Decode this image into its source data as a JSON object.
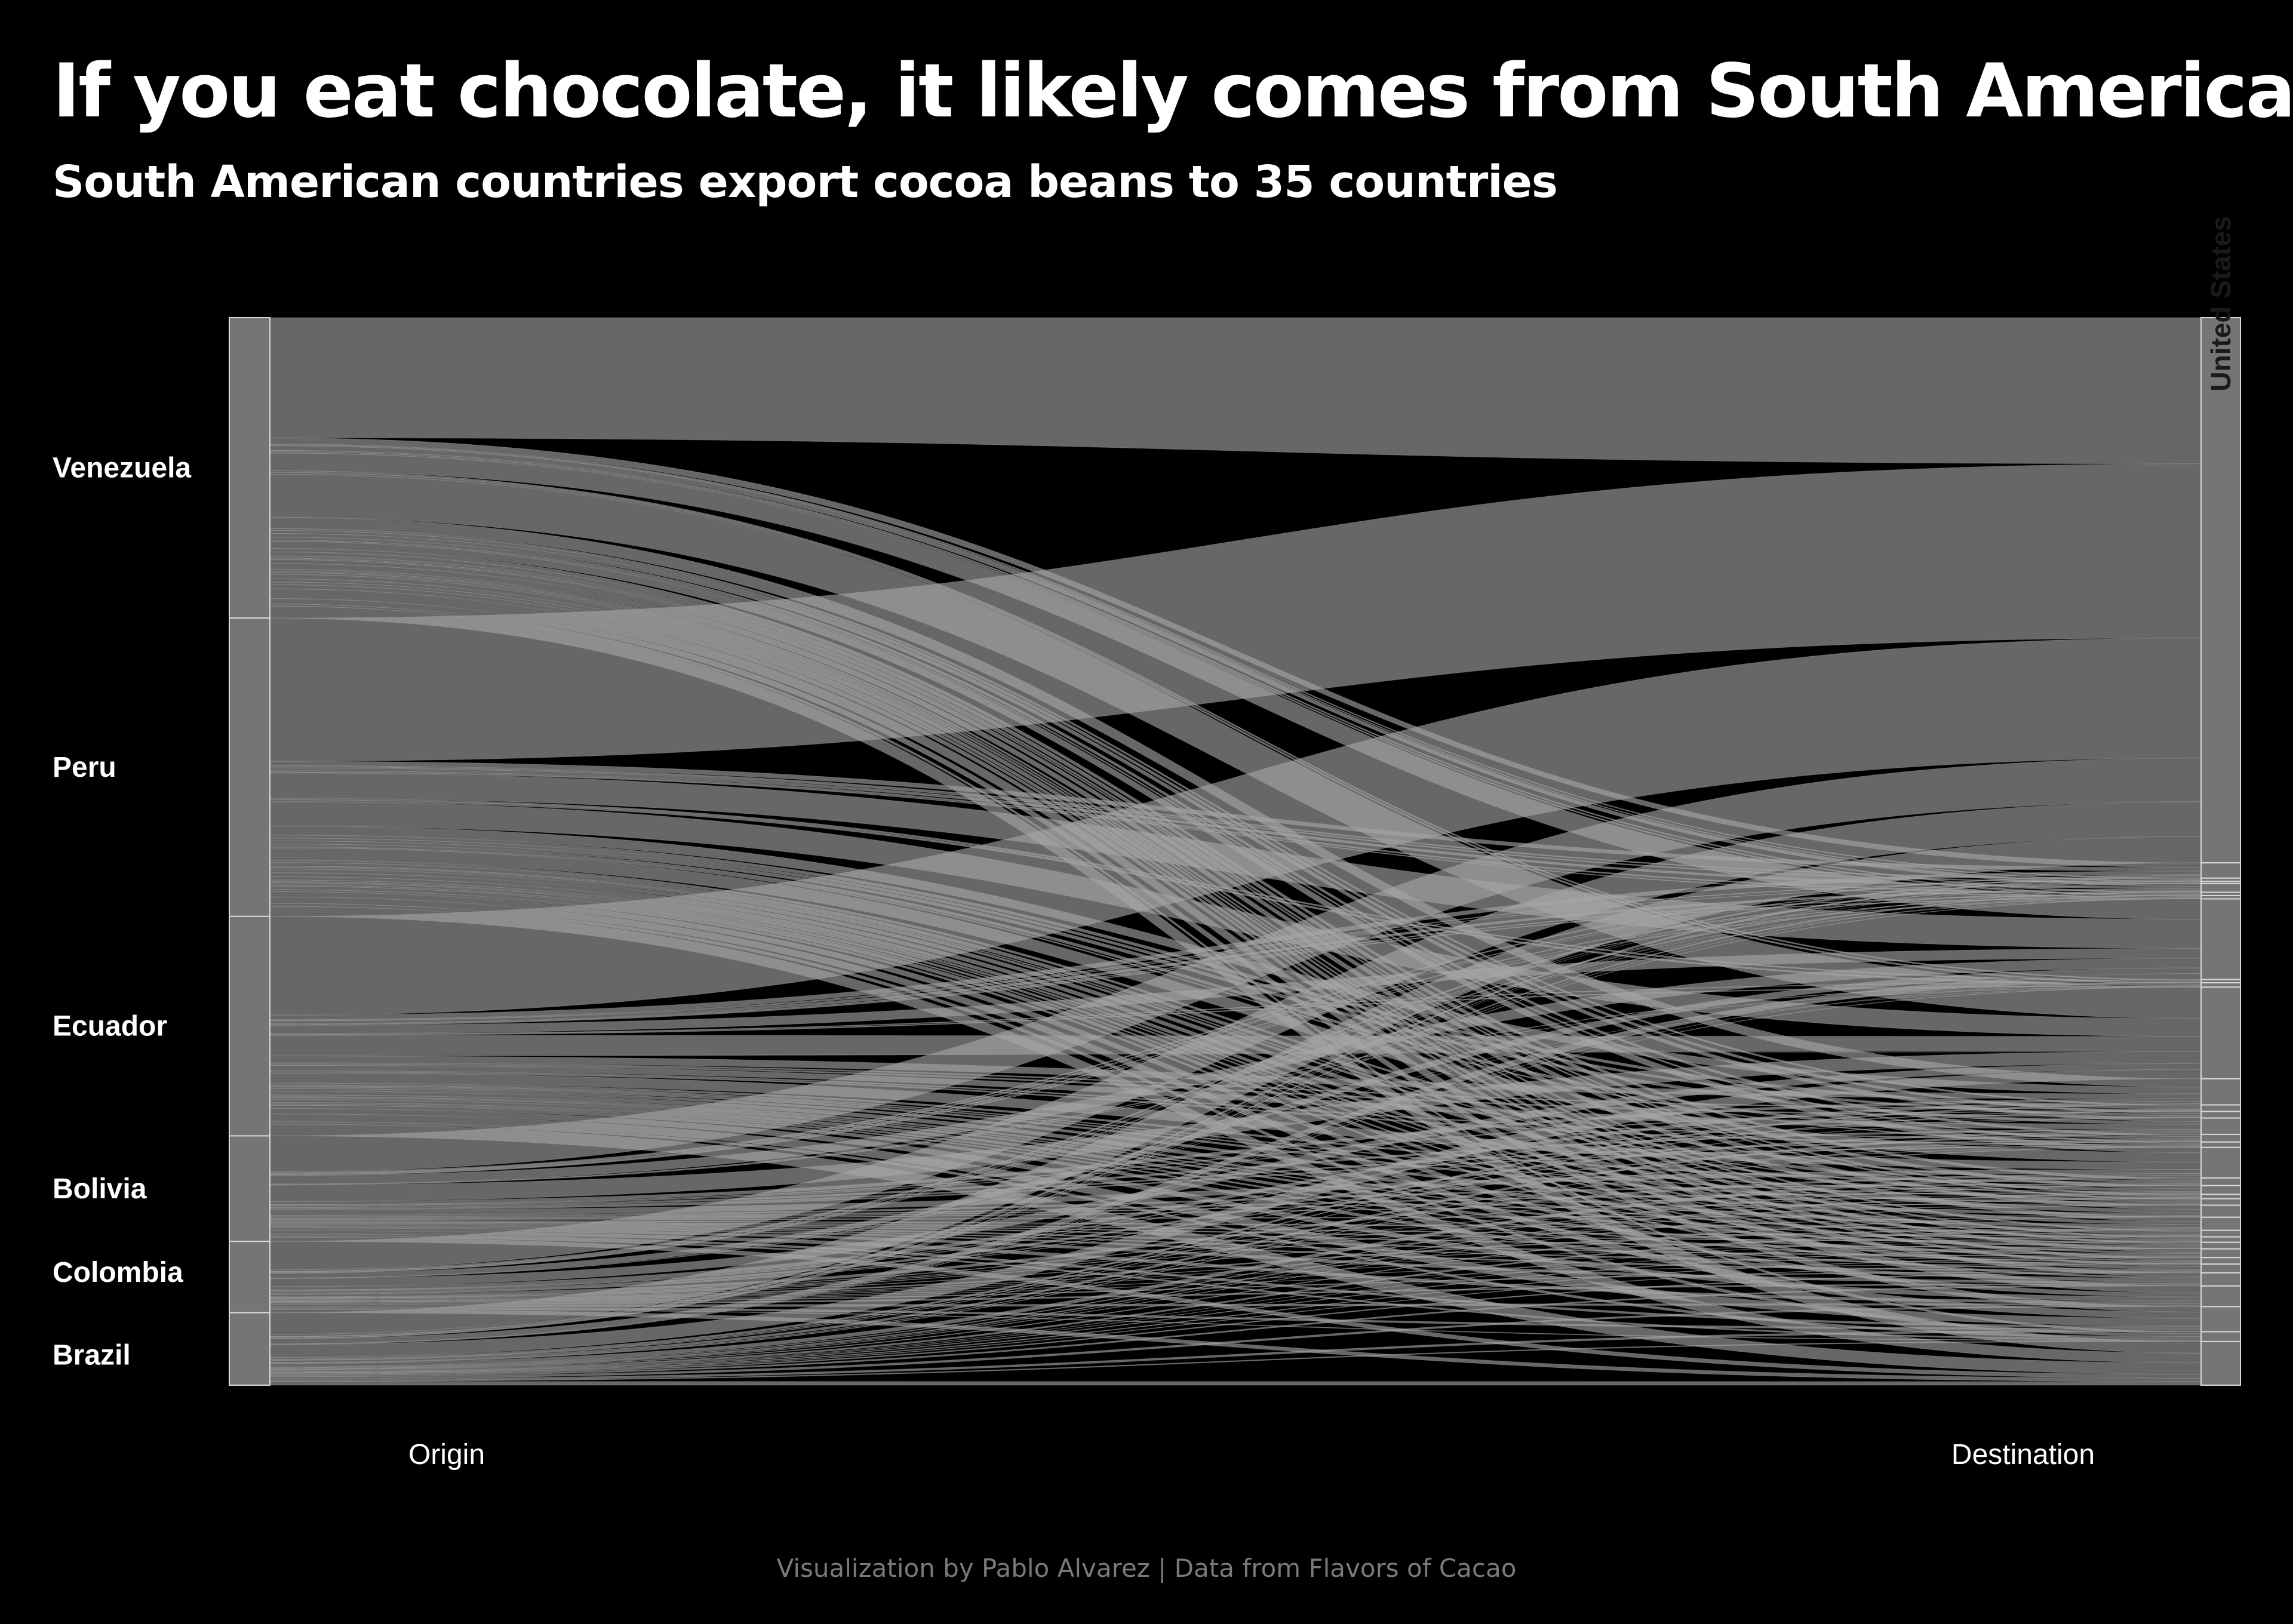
{
  "title": "If you eat chocolate, it likely comes from South America",
  "subtitle": "South American countries export cocoa beans to 35 countries",
  "caption": "Visualization by Pablo Alvarez | Data from Flavors of Cacao",
  "colors": {
    "background": "#000000",
    "flow": "#a6a6a6",
    "stratum_fill": "#757575",
    "stratum_border": "#d9d9d9",
    "text": "#ffffff",
    "caption": "#7a7a7a"
  },
  "chart_data": {
    "type": "alluvial",
    "axes": [
      "Origin",
      "Destination"
    ],
    "origin": [
      {
        "name": "Venezuela",
        "value": 28.2
      },
      {
        "name": "Peru",
        "value": 28.0
      },
      {
        "name": "Ecuador",
        "value": 20.6
      },
      {
        "name": "Bolivia",
        "value": 9.9
      },
      {
        "name": "Colombia",
        "value": 6.7
      },
      {
        "name": "Brazil",
        "value": 6.8
      }
    ],
    "destination": [
      {
        "name": "United States",
        "value": 50.0,
        "label": "United States"
      },
      {
        "name": "",
        "value": 1.4
      },
      {
        "name": "",
        "value": 0.3
      },
      {
        "name": "",
        "value": 0.2
      },
      {
        "name": "",
        "value": 0.8
      },
      {
        "name": "",
        "value": 0.3
      },
      {
        "name": "",
        "value": 0.3
      },
      {
        "name": "",
        "value": 7.4
      },
      {
        "name": "",
        "value": 0.3
      },
      {
        "name": "",
        "value": 0.4
      },
      {
        "name": "",
        "value": 8.4
      },
      {
        "name": "",
        "value": 2.4
      },
      {
        "name": "",
        "value": 0.6
      },
      {
        "name": "",
        "value": 0.6
      },
      {
        "name": "",
        "value": 1.5
      },
      {
        "name": "",
        "value": 0.7
      },
      {
        "name": "",
        "value": 0.5
      },
      {
        "name": "",
        "value": 2.8
      },
      {
        "name": "",
        "value": 0.7
      },
      {
        "name": "",
        "value": 0.8
      },
      {
        "name": "",
        "value": 0.4
      },
      {
        "name": "",
        "value": 0.6
      },
      {
        "name": "",
        "value": 1.1
      },
      {
        "name": "",
        "value": 1.2
      },
      {
        "name": "",
        "value": 0.6
      },
      {
        "name": "",
        "value": 0.5
      },
      {
        "name": "",
        "value": 0.6
      },
      {
        "name": "",
        "value": 0.8
      },
      {
        "name": "",
        "value": 0.6
      },
      {
        "name": "",
        "value": 0.8
      },
      {
        "name": "",
        "value": 1.2
      },
      {
        "name": "",
        "value": 1.9
      },
      {
        "name": "",
        "value": 2.3
      },
      {
        "name": "",
        "value": 0.9
      },
      {
        "name": "",
        "value": 4.0
      }
    ]
  }
}
